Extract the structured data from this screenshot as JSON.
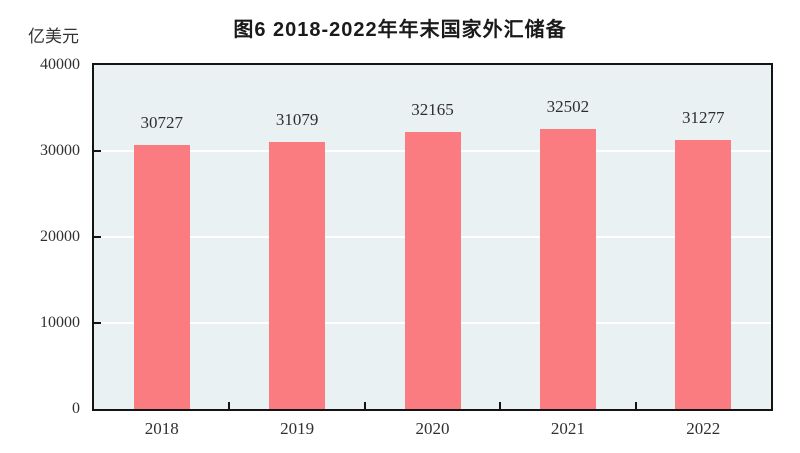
{
  "figure": {
    "title": "图6  2018-2022年年末国家外汇储备",
    "unit_label": "亿美元"
  },
  "chart_data": {
    "type": "bar",
    "title": "图6  2018-2022年年末国家外汇储备",
    "unit": "亿美元",
    "categories": [
      "2018",
      "2019",
      "2020",
      "2021",
      "2022"
    ],
    "values": [
      30727,
      31079,
      32165,
      32502,
      31277
    ],
    "xlabel": "",
    "ylabel": "亿美元",
    "ylim": [
      0,
      40000
    ],
    "yticks": [
      0,
      10000,
      20000,
      30000,
      40000
    ],
    "grid": "horizontal",
    "legend": "none",
    "colors": {
      "bar": "#FA7C80",
      "plot_background": "#EAF1F2",
      "gridline": "#FFFFFF",
      "axis": "#141414",
      "text": "#303030"
    }
  }
}
